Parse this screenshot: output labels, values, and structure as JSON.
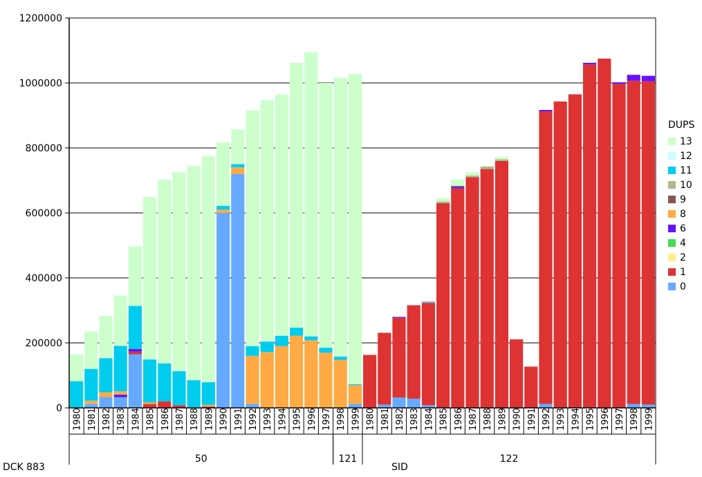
{
  "chart_data": {
    "type": "bar",
    "stacked": true,
    "ylim": [
      0,
      1200000
    ],
    "yticks": [
      0,
      200000,
      400000,
      600000,
      800000,
      1000000,
      1200000
    ],
    "grid": "horizontal",
    "legend_title": "DUPS",
    "legend_position": "right",
    "legend_order": [
      "13",
      "12",
      "11",
      "10",
      "9",
      "8",
      "6",
      "4",
      "2",
      "1",
      "0"
    ],
    "series_colors": {
      "0": "#66aaff",
      "1": "#dd3333",
      "2": "#ffee88",
      "4": "#44dd55",
      "6": "#6611ff",
      "8": "#ffaa44",
      "9": "#885555",
      "10": "#aabb88",
      "11": "#00ccee",
      "12": "#ccffff",
      "13": "#ccffcc"
    },
    "categories": [
      "1980",
      "1981",
      "1982",
      "1983",
      "1984",
      "1985",
      "1986",
      "1987",
      "1988",
      "1989",
      "1990",
      "1991",
      "1992",
      "1993",
      "1994",
      "1995",
      "1996",
      "1997",
      "1998",
      "1999",
      "1980",
      "1981",
      "1982",
      "1983",
      "1984",
      "1985",
      "1986",
      "1987",
      "1988",
      "1989",
      "1990",
      "1991",
      "1992",
      "1993",
      "1994",
      "1995",
      "1996",
      "1997",
      "1998",
      "1999"
    ],
    "groups": [
      {
        "label": "50",
        "start": 0,
        "end": 17
      },
      {
        "label": "121",
        "start": 18,
        "end": 19
      },
      {
        "label": "122",
        "start": 20,
        "end": 39
      }
    ],
    "footer_left": "DCK  883",
    "footer_center": "SID",
    "series": [
      {
        "name": "0",
        "values": [
          0,
          12000,
          33000,
          33000,
          165000,
          0,
          0,
          0,
          0,
          0,
          600000,
          720000,
          12000,
          0,
          0,
          0,
          0,
          0,
          0,
          12000,
          0,
          10000,
          32000,
          28000,
          8000,
          0,
          0,
          0,
          0,
          0,
          0,
          0,
          12000,
          0,
          0,
          0,
          0,
          0,
          12000,
          10000
        ]
      },
      {
        "name": "1",
        "values": [
          0,
          0,
          0,
          0,
          8000,
          12000,
          20000,
          8000,
          0,
          4000,
          0,
          0,
          0,
          0,
          0,
          0,
          0,
          0,
          0,
          0,
          163000,
          221000,
          245000,
          288000,
          313000,
          630000,
          675000,
          710000,
          735000,
          760000,
          211000,
          127000,
          900000,
          943000,
          965000,
          1057000,
          1075000,
          997000,
          995000,
          995000
        ]
      },
      {
        "name": "2",
        "values": [
          0,
          0,
          0,
          0,
          0,
          0,
          0,
          0,
          0,
          0,
          0,
          0,
          0,
          0,
          0,
          0,
          0,
          0,
          0,
          0,
          0,
          0,
          0,
          0,
          0,
          0,
          0,
          0,
          0,
          0,
          0,
          0,
          0,
          0,
          0,
          0,
          0,
          0,
          0,
          0
        ]
      },
      {
        "name": "4",
        "values": [
          0,
          0,
          0,
          0,
          0,
          0,
          0,
          0,
          0,
          0,
          0,
          0,
          0,
          0,
          0,
          0,
          0,
          0,
          0,
          0,
          0,
          0,
          0,
          0,
          0,
          0,
          0,
          0,
          0,
          0,
          0,
          0,
          0,
          0,
          0,
          0,
          0,
          0,
          0,
          0
        ]
      },
      {
        "name": "6",
        "values": [
          0,
          0,
          0,
          8000,
          8000,
          0,
          0,
          0,
          0,
          0,
          0,
          0,
          0,
          0,
          0,
          0,
          0,
          0,
          0,
          0,
          0,
          0,
          3000,
          0,
          2000,
          0,
          5000,
          0,
          0,
          0,
          0,
          0,
          5000,
          0,
          0,
          5000,
          0,
          5000,
          18000,
          17000
        ]
      },
      {
        "name": "8",
        "values": [
          0,
          10000,
          15000,
          10000,
          0,
          5000,
          0,
          0,
          0,
          5000,
          10000,
          20000,
          148000,
          172000,
          190000,
          222000,
          208000,
          170000,
          148000,
          58000,
          0,
          0,
          0,
          0,
          0,
          0,
          0,
          0,
          0,
          0,
          0,
          0,
          0,
          0,
          0,
          0,
          0,
          0,
          0,
          0
        ]
      },
      {
        "name": "9",
        "values": [
          0,
          0,
          0,
          0,
          0,
          0,
          0,
          0,
          0,
          0,
          0,
          0,
          0,
          0,
          0,
          0,
          0,
          0,
          0,
          0,
          0,
          0,
          0,
          0,
          0,
          0,
          3000,
          0,
          0,
          0,
          0,
          0,
          0,
          0,
          0,
          0,
          0,
          0,
          0,
          0
        ]
      },
      {
        "name": "10",
        "values": [
          0,
          0,
          0,
          0,
          0,
          0,
          0,
          0,
          0,
          0,
          0,
          0,
          0,
          0,
          0,
          0,
          0,
          0,
          0,
          0,
          0,
          0,
          0,
          0,
          5000,
          5000,
          0,
          5000,
          8000,
          5000,
          0,
          0,
          0,
          0,
          0,
          0,
          0,
          0,
          0,
          0
        ]
      },
      {
        "name": "11",
        "values": [
          82000,
          98000,
          105000,
          140000,
          133000,
          132000,
          117000,
          105000,
          85000,
          70000,
          12000,
          10000,
          30000,
          32000,
          32000,
          25000,
          12000,
          15000,
          10000,
          3000,
          0,
          0,
          0,
          0,
          0,
          0,
          0,
          0,
          0,
          0,
          0,
          0,
          0,
          0,
          0,
          0,
          0,
          0,
          0,
          0
        ]
      },
      {
        "name": "12",
        "values": [
          0,
          0,
          0,
          0,
          0,
          0,
          0,
          0,
          0,
          0,
          0,
          0,
          0,
          0,
          0,
          0,
          0,
          0,
          0,
          0,
          0,
          0,
          0,
          0,
          0,
          0,
          0,
          0,
          0,
          0,
          0,
          0,
          0,
          0,
          0,
          0,
          0,
          0,
          0,
          0
        ]
      },
      {
        "name": "13",
        "values": [
          83000,
          115000,
          130000,
          155000,
          183000,
          500000,
          565000,
          612000,
          660000,
          695000,
          195000,
          107000,
          725000,
          743000,
          743000,
          815000,
          875000,
          815000,
          858000,
          955000,
          0,
          0,
          0,
          0,
          0,
          10000,
          20000,
          10000,
          0,
          7000,
          0,
          0,
          0,
          0,
          0,
          0,
          0,
          0,
          0,
          0
        ]
      }
    ]
  }
}
